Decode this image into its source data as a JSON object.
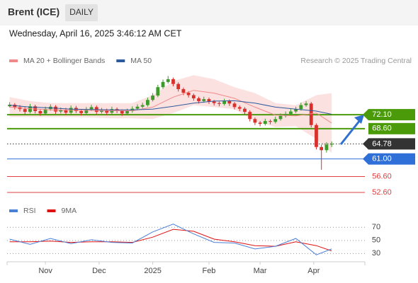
{
  "header": {
    "title": "Brent (ICE)",
    "interval": "DAILY",
    "datetime": "Wednesday, April 16, 2025 3:46:12 AM CET",
    "credit": "Research © 2025 Trading Central"
  },
  "chart_data": [
    {
      "type": "candlestick",
      "up_color": "#3d9a2b",
      "down_color": "#d9302b",
      "ohlc": [
        [
          74.2,
          75.2,
          73.9,
          74.6
        ],
        [
          74.6,
          75.0,
          73.4,
          74.0
        ],
        [
          74.0,
          74.5,
          72.9,
          73.5
        ],
        [
          73.5,
          74.0,
          72.2,
          72.8
        ],
        [
          72.8,
          74.8,
          72.4,
          74.2
        ],
        [
          74.2,
          74.6,
          72.4,
          73.0
        ],
        [
          73.0,
          73.5,
          71.8,
          72.4
        ],
        [
          72.4,
          74.1,
          72.0,
          73.5
        ],
        [
          73.5,
          74.7,
          73.1,
          74.1
        ],
        [
          74.1,
          74.5,
          72.3,
          72.9
        ],
        [
          72.9,
          73.9,
          72.4,
          73.3
        ],
        [
          73.3,
          73.8,
          72.0,
          72.6
        ],
        [
          72.6,
          74.4,
          72.2,
          73.8
        ],
        [
          73.8,
          74.3,
          72.5,
          73.0
        ],
        [
          73.0,
          73.5,
          71.9,
          72.5
        ],
        [
          72.5,
          74.0,
          72.1,
          73.4
        ],
        [
          73.4,
          74.6,
          73.0,
          74.0
        ],
        [
          74.0,
          74.4,
          72.2,
          72.8
        ],
        [
          72.8,
          73.8,
          72.4,
          73.2
        ],
        [
          73.2,
          73.6,
          72.0,
          72.6
        ],
        [
          72.6,
          74.1,
          72.2,
          73.5
        ],
        [
          73.5,
          73.9,
          72.5,
          73.0
        ],
        [
          73.0,
          73.4,
          71.8,
          72.4
        ],
        [
          72.4,
          73.6,
          72.0,
          73.0
        ],
        [
          73.0,
          74.2,
          72.6,
          73.6
        ],
        [
          73.6,
          74.7,
          73.2,
          74.1
        ],
        [
          74.1,
          75.1,
          73.7,
          74.5
        ],
        [
          74.5,
          76.4,
          74.1,
          75.8
        ],
        [
          75.8,
          77.5,
          75.4,
          76.9
        ],
        [
          76.9,
          79.6,
          76.5,
          79.0
        ],
        [
          79.0,
          80.9,
          78.6,
          80.3
        ],
        [
          80.3,
          81.8,
          79.9,
          81.0
        ],
        [
          81.0,
          81.4,
          79.2,
          79.8
        ],
        [
          79.8,
          80.2,
          77.9,
          78.5
        ],
        [
          78.5,
          78.9,
          77.0,
          77.6
        ],
        [
          77.6,
          78.0,
          76.4,
          77.0
        ],
        [
          77.0,
          77.4,
          75.6,
          76.2
        ],
        [
          76.2,
          76.6,
          74.9,
          75.5
        ],
        [
          75.5,
          76.6,
          75.1,
          76.0
        ],
        [
          76.0,
          76.4,
          74.8,
          75.4
        ],
        [
          75.4,
          75.8,
          74.4,
          75.0
        ],
        [
          75.0,
          75.4,
          74.2,
          74.8
        ],
        [
          74.8,
          76.1,
          74.4,
          75.5
        ],
        [
          75.5,
          75.9,
          74.3,
          74.9
        ],
        [
          74.9,
          75.3,
          73.4,
          74.0
        ],
        [
          74.0,
          74.4,
          73.0,
          73.6
        ],
        [
          73.6,
          74.0,
          72.2,
          72.8
        ],
        [
          72.8,
          73.2,
          70.4,
          71.0
        ],
        [
          71.0,
          71.4,
          69.5,
          70.1
        ],
        [
          70.1,
          70.5,
          69.2,
          69.8
        ],
        [
          69.8,
          71.1,
          69.4,
          70.5
        ],
        [
          70.5,
          70.9,
          69.7,
          70.3
        ],
        [
          70.3,
          71.6,
          69.9,
          71.0
        ],
        [
          71.0,
          72.4,
          70.6,
          71.8
        ],
        [
          71.8,
          72.9,
          71.4,
          72.3
        ],
        [
          72.3,
          73.5,
          71.9,
          72.9
        ],
        [
          72.9,
          74.1,
          72.5,
          73.5
        ],
        [
          73.5,
          75.1,
          73.1,
          74.5
        ],
        [
          74.5,
          75.5,
          74.1,
          74.9
        ],
        [
          74.9,
          75.3,
          68.9,
          69.5
        ],
        [
          69.5,
          69.9,
          63.4,
          64.0
        ],
        [
          64.0,
          64.6,
          58.3,
          63.2
        ],
        [
          63.2,
          65.2,
          62.6,
          64.6
        ],
        [
          64.6,
          65.4,
          64.0,
          64.8
        ]
      ],
      "overlay_x": [
        0,
        4,
        8,
        12,
        16,
        20,
        24,
        28,
        32,
        36,
        40,
        44,
        48,
        52,
        56,
        60,
        63
      ],
      "bands": {
        "name": "MA 20 + Bollinger Bands",
        "color": "#fbd9d9",
        "upper": [
          76.5,
          75.5,
          75.0,
          75.0,
          75.0,
          75.0,
          75.0,
          77.0,
          80.5,
          82.0,
          81.0,
          79.0,
          77.5,
          75.0,
          74.5,
          77.0,
          77.5
        ],
        "lower": [
          71.5,
          71.5,
          71.5,
          71.5,
          71.4,
          71.2,
          71.2,
          71.0,
          72.5,
          74.5,
          74.0,
          73.5,
          70.5,
          69.0,
          69.2,
          66.0,
          62.5
        ]
      },
      "series": [
        {
          "name": "MA 20 + Bollinger Bands",
          "color": "#f08a8a",
          "values": [
            74.0,
            73.6,
            73.3,
            73.2,
            73.2,
            73.1,
            73.1,
            74.0,
            76.5,
            78.2,
            77.5,
            76.2,
            74.0,
            72.0,
            71.8,
            72.5,
            70.0
          ]
        },
        {
          "name": "MA 50",
          "color": "#2c5a9c",
          "values": [
            74.5,
            74.0,
            73.8,
            73.5,
            73.4,
            73.3,
            73.3,
            73.5,
            74.2,
            75.0,
            75.5,
            75.6,
            75.0,
            74.0,
            73.5,
            73.0,
            72.2
          ]
        }
      ],
      "xlim": [
        -0.5,
        69.5
      ],
      "ylim": [
        50.3,
        84.0
      ],
      "xticks": [
        {
          "value": 7,
          "label": "Nov"
        },
        {
          "value": 17.5,
          "label": "Dec"
        },
        {
          "value": 28,
          "label": "2025"
        },
        {
          "value": 39,
          "label": "Feb"
        },
        {
          "value": 49,
          "label": "Mar"
        },
        {
          "value": 59.5,
          "label": "Apr"
        }
      ],
      "levels": [
        {
          "value": 72.1,
          "label": "72.10",
          "color": "#4a9a0a",
          "line": "solid",
          "box": true,
          "arrow": true
        },
        {
          "value": 68.6,
          "label": "68.60",
          "color": "#4a9a0a",
          "line": "solid",
          "box": true,
          "arrow": false
        },
        {
          "value": 64.78,
          "label": "64.78",
          "color": "#333333",
          "line": "dotted",
          "box": true,
          "arrow": true
        },
        {
          "value": 61.0,
          "label": "61.00",
          "color": "#2f6fd8",
          "line": "solid",
          "box": true,
          "arrow": true
        },
        {
          "value": 56.6,
          "label": "56.60",
          "color": "#e04040",
          "line": "solid",
          "box": false,
          "arrow": false
        },
        {
          "value": 52.6,
          "label": "52.60",
          "color": "#e04040",
          "line": "solid",
          "box": false,
          "arrow": false
        }
      ]
    },
    {
      "type": "line",
      "x": [
        0,
        4,
        8,
        12,
        16,
        20,
        24,
        28,
        32,
        36,
        40,
        44,
        48,
        52,
        56,
        60,
        63
      ],
      "series": [
        {
          "name": "RSI",
          "color": "#4a7fd6",
          "values": [
            52,
            44,
            53,
            45,
            51,
            47,
            46,
            63,
            75,
            60,
            47,
            46,
            37,
            41,
            53,
            28,
            37
          ]
        },
        {
          "name": "9MA",
          "color": "#e01010",
          "values": [
            48,
            48,
            49,
            47,
            48,
            48,
            47,
            55,
            67,
            64,
            52,
            48,
            42,
            41,
            48,
            42,
            34
          ]
        }
      ],
      "xlim": [
        -0.5,
        69.5
      ],
      "ylim": [
        12,
        93
      ],
      "yticks": [
        70,
        50,
        30
      ],
      "grid": true
    }
  ]
}
